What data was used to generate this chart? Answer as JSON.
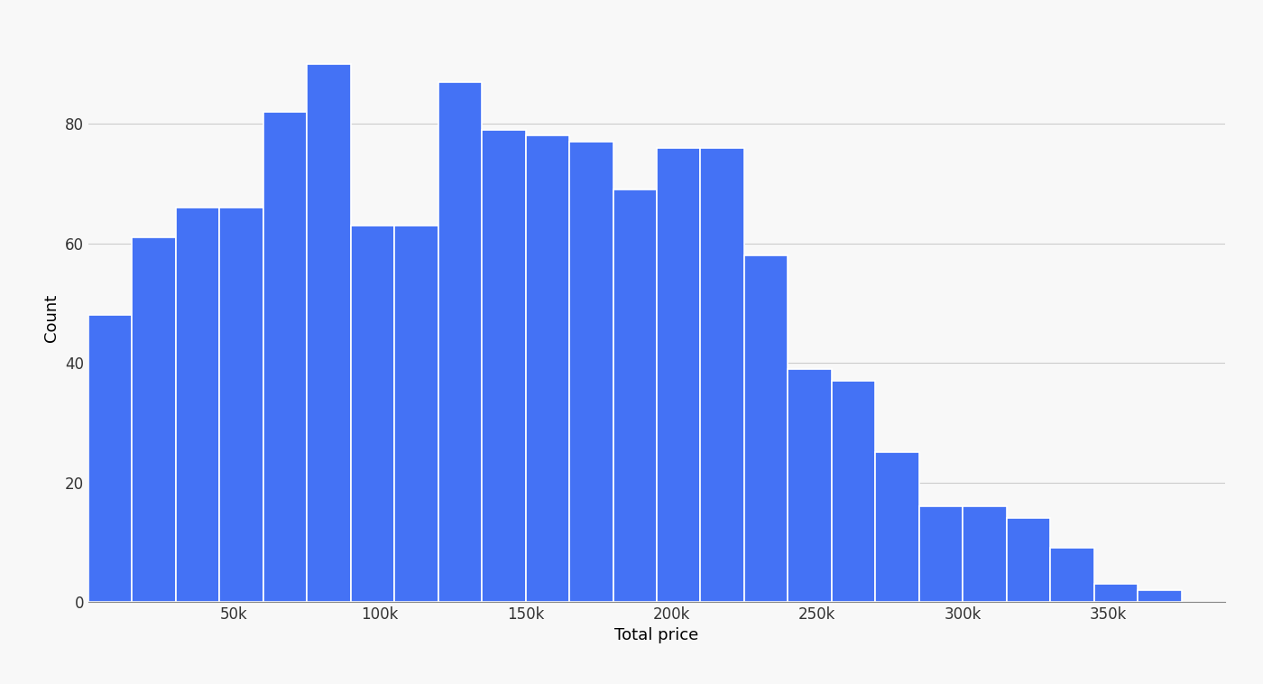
{
  "bar_heights": [
    48,
    61,
    66,
    66,
    82,
    90,
    63,
    63,
    87,
    79,
    78,
    77,
    69,
    76,
    76,
    58,
    39,
    37,
    25,
    16,
    16,
    14,
    9,
    3,
    2
  ],
  "bin_start": 0,
  "bin_width": 15000,
  "num_bins": 25,
  "bar_color": "#4472F5",
  "bar_edge_color": "#ffffff",
  "bar_edge_width": 1.2,
  "xlabel": "Total price",
  "ylabel": "Count",
  "xlabel_fontsize": 13,
  "ylabel_fontsize": 13,
  "tick_fontsize": 12,
  "ylim": [
    0,
    95
  ],
  "yticks": [
    0,
    20,
    40,
    60,
    80
  ],
  "xtick_positions": [
    50000,
    100000,
    150000,
    200000,
    250000,
    300000,
    350000
  ],
  "xtick_labels": [
    "50k",
    "100k",
    "150k",
    "200k",
    "250k",
    "300k",
    "350k"
  ],
  "grid_color": "#cccccc",
  "grid_linewidth": 0.8,
  "background_color": "#f8f8f8",
  "xlim_left": 0,
  "xlim_right": 390000
}
